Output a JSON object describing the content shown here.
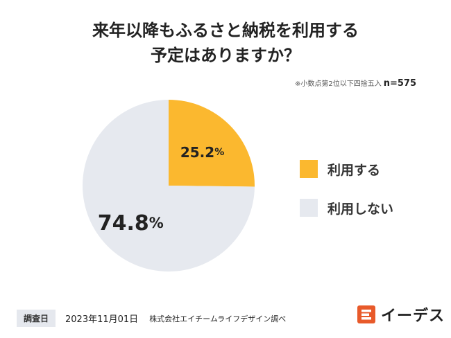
{
  "title_line1": "来年以降もふるさと納税を利用する",
  "title_line2": "予定はありますか？",
  "note_text": "※小数点第2位以下四捨五入",
  "n_label": "n=575",
  "colors": {
    "use": "#fbb82f",
    "not_use": "#e6e9ef"
  },
  "chart_data": {
    "type": "pie",
    "title": "来年以降もふるさと納税を利用する予定はありますか？",
    "slices": [
      {
        "label": "利用する",
        "value": 25.2,
        "display": "25.2",
        "unit": "%"
      },
      {
        "label": "利用しない",
        "value": 74.8,
        "display": "74.8",
        "unit": "%"
      }
    ],
    "legend_position": "right"
  },
  "footer": {
    "label": "調査日",
    "date": "2023年11月01日",
    "org": "株式会社エイチームライフデザイン調べ"
  },
  "logo": {
    "text": "イーデス",
    "icon": "e-logo-icon"
  }
}
